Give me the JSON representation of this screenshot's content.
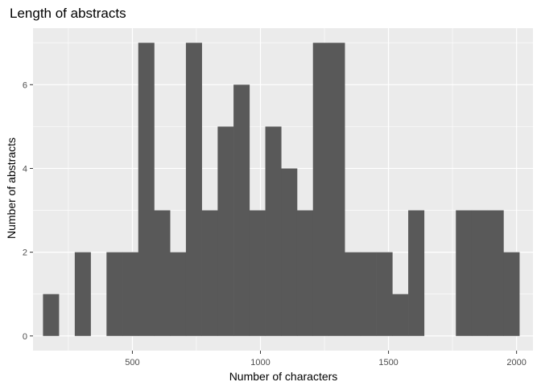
{
  "chart_data": {
    "type": "bar",
    "title": "Length of abstracts",
    "xlabel": "Number of characters",
    "ylabel": "Number of abstracts",
    "xlim": [
      112,
      2064
    ],
    "ylim": [
      -0.35,
      7.35
    ],
    "xticks": [
      500,
      1000,
      1500,
      2000
    ],
    "yticks": [
      0,
      2,
      4,
      6
    ],
    "bin_width": 62,
    "bins": [
      {
        "x_start": 151,
        "x_end": 213,
        "count": 1
      },
      {
        "x_start": 213,
        "x_end": 275,
        "count": 0
      },
      {
        "x_start": 275,
        "x_end": 337,
        "count": 2
      },
      {
        "x_start": 337,
        "x_end": 399,
        "count": 0
      },
      {
        "x_start": 399,
        "x_end": 461,
        "count": 2
      },
      {
        "x_start": 461,
        "x_end": 523,
        "count": 2
      },
      {
        "x_start": 523,
        "x_end": 585,
        "count": 7
      },
      {
        "x_start": 585,
        "x_end": 647,
        "count": 3
      },
      {
        "x_start": 647,
        "x_end": 709,
        "count": 2
      },
      {
        "x_start": 709,
        "x_end": 771,
        "count": 7
      },
      {
        "x_start": 771,
        "x_end": 833,
        "count": 3
      },
      {
        "x_start": 833,
        "x_end": 895,
        "count": 5
      },
      {
        "x_start": 895,
        "x_end": 957,
        "count": 6
      },
      {
        "x_start": 957,
        "x_end": 1019,
        "count": 3
      },
      {
        "x_start": 1019,
        "x_end": 1081,
        "count": 5
      },
      {
        "x_start": 1081,
        "x_end": 1143,
        "count": 4
      },
      {
        "x_start": 1143,
        "x_end": 1205,
        "count": 3
      },
      {
        "x_start": 1205,
        "x_end": 1267,
        "count": 7
      },
      {
        "x_start": 1267,
        "x_end": 1329,
        "count": 7
      },
      {
        "x_start": 1329,
        "x_end": 1391,
        "count": 2
      },
      {
        "x_start": 1391,
        "x_end": 1453,
        "count": 2
      },
      {
        "x_start": 1453,
        "x_end": 1515,
        "count": 2
      },
      {
        "x_start": 1515,
        "x_end": 1577,
        "count": 1
      },
      {
        "x_start": 1577,
        "x_end": 1639,
        "count": 3
      },
      {
        "x_start": 1639,
        "x_end": 1701,
        "count": 0
      },
      {
        "x_start": 1701,
        "x_end": 1763,
        "count": 0
      },
      {
        "x_start": 1763,
        "x_end": 1825,
        "count": 3
      },
      {
        "x_start": 1825,
        "x_end": 1887,
        "count": 3
      },
      {
        "x_start": 1887,
        "x_end": 1949,
        "count": 3
      },
      {
        "x_start": 1949,
        "x_end": 2011,
        "count": 2
      }
    ],
    "bar_color": "#595959",
    "panel_background": "#ebebeb",
    "grid_color": "#ffffff",
    "grid": true,
    "legend": "none"
  }
}
